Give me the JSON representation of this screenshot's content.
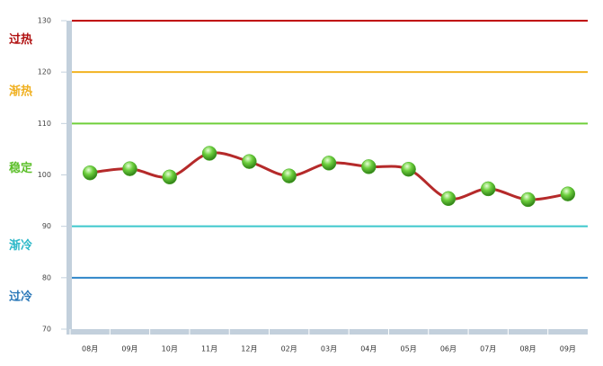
{
  "chart_data": {
    "type": "line",
    "categories": [
      "08月",
      "09月",
      "10月",
      "11月",
      "12月",
      "02月",
      "03月",
      "04月",
      "05月",
      "06月",
      "07月",
      "08月",
      "09月"
    ],
    "series": [
      {
        "color": "#b52a2a",
        "marker_color": "#4caf2a",
        "values": [
          100.4,
          101.2,
          99.6,
          104.2,
          102.6,
          99.8,
          102.3,
          101.6,
          101.1,
          95.4,
          97.3,
          95.2,
          96.3
        ]
      }
    ],
    "ylim": [
      70,
      130
    ],
    "yticks": [
      70,
      80,
      90,
      100,
      110,
      120,
      130
    ],
    "reference_lines": [
      {
        "value": 130,
        "color": "#c00000"
      },
      {
        "value": 120,
        "color": "#f2b320"
      },
      {
        "value": 110,
        "color": "#6fcf3a"
      },
      {
        "value": 90,
        "color": "#3cc8cc"
      },
      {
        "value": 80,
        "color": "#2f86c8"
      }
    ],
    "zones": [
      {
        "text": "过热",
        "color": "#b01010"
      },
      {
        "text": "渐热",
        "color": "#f0b020"
      },
      {
        "text": "稳定",
        "color": "#5cbf2a"
      },
      {
        "text": "渐冷",
        "color": "#2cb8c8"
      },
      {
        "text": "过冷",
        "color": "#2a78b8"
      }
    ]
  }
}
